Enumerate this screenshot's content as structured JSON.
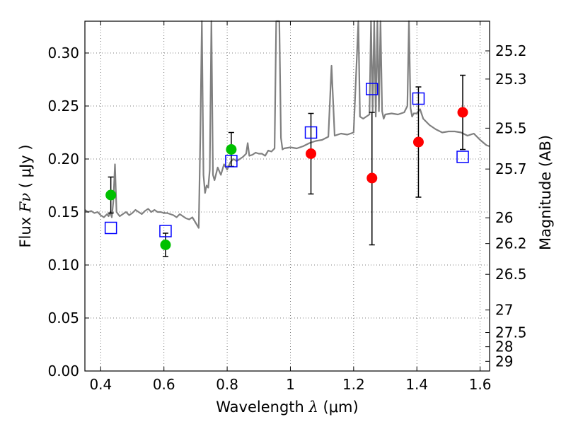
{
  "chart_data": {
    "type": "scatter",
    "xlabel": {
      "prefix": "Wavelength  ",
      "symbol": "λ",
      "unit": " (μm)"
    },
    "ylabel": {
      "prefix": "Flux  ",
      "symbol": "Fν",
      "unit": "  ( μJy )"
    },
    "y2label": "Magnitude (AB)",
    "xlim": [
      0.35,
      1.63
    ],
    "ylim": [
      0.0,
      0.33
    ],
    "grid": true,
    "x_ticks": [
      {
        "value": 0.4,
        "label": "0.4"
      },
      {
        "value": 0.6,
        "label": "0.6"
      },
      {
        "value": 0.8,
        "label": "0.8"
      },
      {
        "value": 1.0,
        "label": "1"
      },
      {
        "value": 1.2,
        "label": "1.2"
      },
      {
        "value": 1.4,
        "label": "1.4"
      },
      {
        "value": 1.6,
        "label": "1.6"
      }
    ],
    "y_ticks": [
      {
        "value": 0.0,
        "label": "0.00"
      },
      {
        "value": 0.05,
        "label": "0.05"
      },
      {
        "value": 0.1,
        "label": "0.10"
      },
      {
        "value": 0.15,
        "label": "0.15"
      },
      {
        "value": 0.2,
        "label": "0.20"
      },
      {
        "value": 0.25,
        "label": "0.25"
      },
      {
        "value": 0.3,
        "label": "0.30"
      }
    ],
    "mag_ticks": [
      {
        "label": "25.2",
        "mag": 25.2
      },
      {
        "label": "25.3",
        "mag": 25.3
      },
      {
        "label": "25.5",
        "mag": 25.5
      },
      {
        "label": "25.7",
        "mag": 25.7
      },
      {
        "label": "26",
        "mag": 26.0
      },
      {
        "label": "26.2",
        "mag": 26.2
      },
      {
        "label": "26.5",
        "mag": 26.5
      },
      {
        "label": "27",
        "mag": 27.0
      },
      {
        "label": "27.5",
        "mag": 27.5
      },
      {
        "label": "28",
        "mag": 28.0
      },
      {
        "label": "29",
        "mag": 29.0
      }
    ],
    "mag_zero_point": 23.9,
    "colors": {
      "model": "#808080",
      "green": "#00c000",
      "red": "#ff0000",
      "box": "#0000ff",
      "error": "#000000",
      "grid": "#555555"
    },
    "model_spectrum": {
      "x": [
        0.35,
        0.36,
        0.37,
        0.38,
        0.39,
        0.4,
        0.41,
        0.42,
        0.425,
        0.43,
        0.435,
        0.44,
        0.445,
        0.45,
        0.46,
        0.47,
        0.48,
        0.49,
        0.5,
        0.51,
        0.52,
        0.53,
        0.54,
        0.55,
        0.56,
        0.57,
        0.58,
        0.59,
        0.6,
        0.61,
        0.62,
        0.63,
        0.64,
        0.65,
        0.66,
        0.67,
        0.68,
        0.69,
        0.7,
        0.71,
        0.715,
        0.72,
        0.725,
        0.73,
        0.735,
        0.74,
        0.745,
        0.75,
        0.755,
        0.76,
        0.77,
        0.78,
        0.79,
        0.8,
        0.81,
        0.82,
        0.83,
        0.84,
        0.85,
        0.86,
        0.865,
        0.87,
        0.88,
        0.89,
        0.9,
        0.91,
        0.92,
        0.93,
        0.94,
        0.95,
        0.955,
        0.96,
        0.965,
        0.97,
        0.975,
        0.98,
        1.0,
        1.02,
        1.04,
        1.06,
        1.08,
        1.1,
        1.12,
        1.13,
        1.14,
        1.16,
        1.18,
        1.2,
        1.21,
        1.215,
        1.22,
        1.23,
        1.24,
        1.25,
        1.255,
        1.26,
        1.265,
        1.27,
        1.275,
        1.28,
        1.285,
        1.29,
        1.295,
        1.3,
        1.32,
        1.34,
        1.36,
        1.37,
        1.375,
        1.38,
        1.385,
        1.39,
        1.4,
        1.41,
        1.42,
        1.44,
        1.46,
        1.48,
        1.5,
        1.52,
        1.54,
        1.56,
        1.58,
        1.6,
        1.62,
        1.63
      ],
      "y": [
        0.152,
        0.15,
        0.151,
        0.149,
        0.15,
        0.147,
        0.145,
        0.148,
        0.146,
        0.15,
        0.145,
        0.16,
        0.195,
        0.15,
        0.146,
        0.148,
        0.15,
        0.147,
        0.149,
        0.152,
        0.15,
        0.148,
        0.151,
        0.153,
        0.15,
        0.152,
        0.15,
        0.15,
        0.149,
        0.149,
        0.148,
        0.147,
        0.145,
        0.148,
        0.146,
        0.144,
        0.143,
        0.145,
        0.14,
        0.135,
        0.22,
        0.33,
        0.185,
        0.168,
        0.175,
        0.173,
        0.19,
        0.33,
        0.185,
        0.18,
        0.192,
        0.185,
        0.195,
        0.19,
        0.197,
        0.2,
        0.198,
        0.2,
        0.202,
        0.205,
        0.215,
        0.203,
        0.204,
        0.206,
        0.205,
        0.205,
        0.203,
        0.208,
        0.207,
        0.21,
        0.33,
        0.33,
        0.33,
        0.22,
        0.209,
        0.21,
        0.211,
        0.21,
        0.212,
        0.215,
        0.217,
        0.218,
        0.221,
        0.288,
        0.222,
        0.224,
        0.223,
        0.225,
        0.295,
        0.33,
        0.24,
        0.238,
        0.24,
        0.242,
        0.33,
        0.245,
        0.33,
        0.24,
        0.33,
        0.245,
        0.33,
        0.245,
        0.238,
        0.242,
        0.243,
        0.242,
        0.244,
        0.25,
        0.33,
        0.248,
        0.24,
        0.243,
        0.243,
        0.247,
        0.238,
        0.232,
        0.228,
        0.225,
        0.226,
        0.226,
        0.225,
        0.222,
        0.224,
        0.218,
        0.213,
        0.212
      ]
    },
    "photometry": [
      {
        "x": 0.432,
        "y": 0.166,
        "err_low": 0.149,
        "err_high": 0.183,
        "color": "green"
      },
      {
        "x": 0.605,
        "y": 0.119,
        "err_low": 0.108,
        "err_high": 0.13,
        "color": "green"
      },
      {
        "x": 0.813,
        "y": 0.209,
        "err_low": 0.193,
        "err_high": 0.225,
        "color": "green"
      },
      {
        "x": 1.065,
        "y": 0.205,
        "err_low": 0.167,
        "err_high": 0.243,
        "color": "red"
      },
      {
        "x": 1.258,
        "y": 0.182,
        "err_low": 0.119,
        "err_high": 0.244,
        "color": "red"
      },
      {
        "x": 1.405,
        "y": 0.216,
        "err_low": 0.164,
        "err_high": 0.268,
        "color": "red"
      },
      {
        "x": 1.545,
        "y": 0.244,
        "err_low": 0.209,
        "err_high": 0.279,
        "color": "red"
      }
    ],
    "model_photometry": [
      {
        "x": 0.432,
        "y": 0.135
      },
      {
        "x": 0.605,
        "y": 0.132
      },
      {
        "x": 0.813,
        "y": 0.198
      },
      {
        "x": 1.065,
        "y": 0.225
      },
      {
        "x": 1.258,
        "y": 0.266
      },
      {
        "x": 1.405,
        "y": 0.257
      },
      {
        "x": 1.545,
        "y": 0.202
      }
    ]
  }
}
